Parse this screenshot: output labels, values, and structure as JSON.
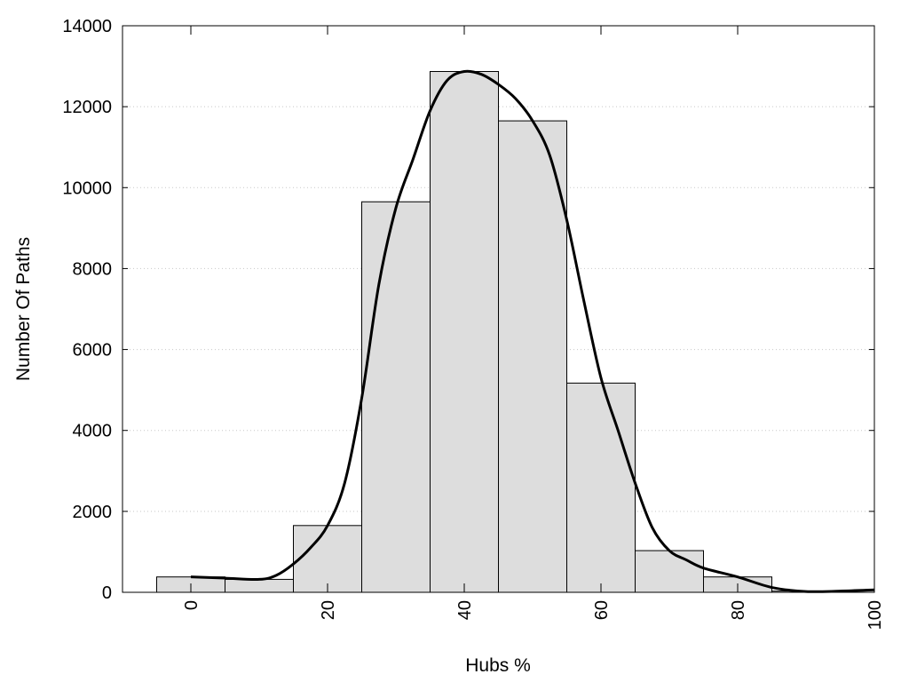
{
  "chart_data": {
    "type": "bar",
    "title": "",
    "xlabel": "Hubs %",
    "ylabel": "Number Of Paths",
    "xlim": [
      -10,
      100
    ],
    "ylim": [
      0,
      14000
    ],
    "x_ticks": [
      0,
      20,
      40,
      60,
      80,
      100
    ],
    "y_ticks": [
      0,
      2000,
      4000,
      6000,
      8000,
      10000,
      12000,
      14000
    ],
    "grid": "horizontal-dotted",
    "bar_color": "#dddddd",
    "bar_edge_color": "#000000",
    "bin_width": 10,
    "bins": [
      {
        "x": 0,
        "value": 380
      },
      {
        "x": 10,
        "value": 320
      },
      {
        "x": 20,
        "value": 1650
      },
      {
        "x": 30,
        "value": 9650
      },
      {
        "x": 40,
        "value": 12870
      },
      {
        "x": 50,
        "value": 11650
      },
      {
        "x": 60,
        "value": 5170
      },
      {
        "x": 70,
        "value": 1030
      },
      {
        "x": 80,
        "value": 380
      },
      {
        "x": 90,
        "value": 30
      }
    ],
    "curve": {
      "type": "line",
      "color": "#000000",
      "points": [
        [
          0,
          380
        ],
        [
          5,
          350
        ],
        [
          10,
          320
        ],
        [
          12.5,
          420
        ],
        [
          15,
          700
        ],
        [
          17.5,
          1100
        ],
        [
          20,
          1650
        ],
        [
          22.5,
          2700
        ],
        [
          25,
          4800
        ],
        [
          27.5,
          7600
        ],
        [
          30,
          9500
        ],
        [
          32.5,
          10700
        ],
        [
          35,
          11900
        ],
        [
          37.5,
          12650
        ],
        [
          40,
          12870
        ],
        [
          42.5,
          12800
        ],
        [
          45,
          12550
        ],
        [
          47.5,
          12200
        ],
        [
          50,
          11650
        ],
        [
          52.5,
          10800
        ],
        [
          55,
          9200
        ],
        [
          57.5,
          7200
        ],
        [
          60,
          5300
        ],
        [
          62.5,
          4000
        ],
        [
          65,
          2700
        ],
        [
          67.5,
          1600
        ],
        [
          70,
          1030
        ],
        [
          72.5,
          800
        ],
        [
          75,
          600
        ],
        [
          80,
          380
        ],
        [
          85,
          120
        ],
        [
          90,
          20
        ],
        [
          95,
          30
        ],
        [
          100,
          60
        ]
      ]
    }
  }
}
